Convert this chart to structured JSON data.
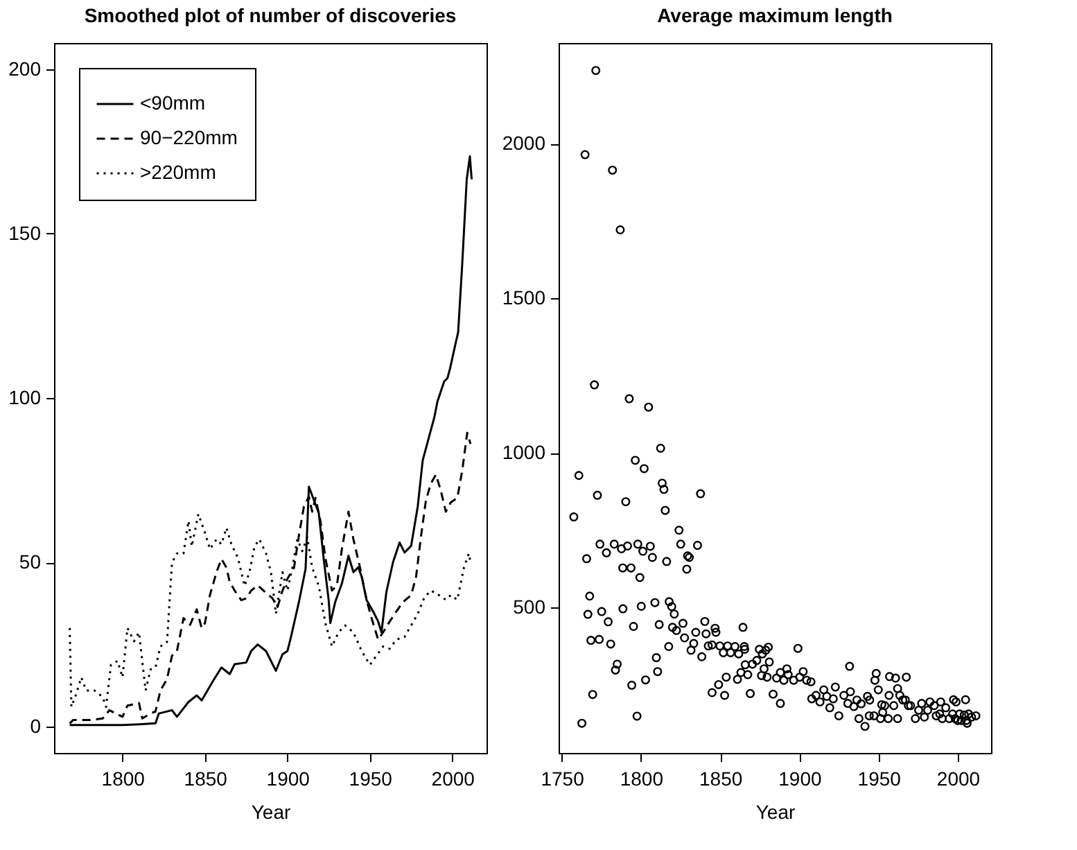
{
  "chart_data": [
    {
      "type": "line",
      "title": "Smoothed plot of number of discoveries",
      "xlabel": "Year",
      "xlim": [
        1758.5,
        2020.7
      ],
      "ylim": [
        -8,
        208
      ],
      "xticks": [
        1800,
        1850,
        1900,
        1950,
        2000
      ],
      "yticks": [
        0,
        50,
        100,
        150,
        200
      ],
      "grid": false,
      "legend": "top left",
      "series": [
        {
          "name": "<90mm",
          "color": "#000000",
          "line_style": "solid",
          "x": [
            1768,
            1780,
            1800,
            1810,
            1820,
            1822,
            1830,
            1833,
            1840,
            1845,
            1848,
            1855,
            1860,
            1865,
            1868,
            1875,
            1878,
            1882,
            1887,
            1890,
            1893,
            1897,
            1900,
            1902,
            1907,
            1911,
            1913,
            1916,
            1919,
            1922,
            1925,
            1926,
            1929,
            1933,
            1937,
            1940,
            1943,
            1945,
            1948,
            1952,
            1955,
            1957,
            1960,
            1964,
            1968,
            1971,
            1975,
            1979,
            1982,
            1985,
            1989,
            1991,
            1995,
            1997,
            1998.6,
            2001.9,
            2003.5,
            2006,
            2008.7,
            2010.6,
            2011.7
          ],
          "values": [
            0.5,
            0.5,
            0.5,
            0.7,
            1,
            4,
            5,
            3,
            7.5,
            9.5,
            8,
            14,
            18,
            16,
            19,
            19.5,
            23,
            25,
            23,
            20,
            17,
            22,
            23,
            27,
            38,
            48,
            73,
            69,
            65,
            51,
            38.5,
            31.5,
            38,
            43.5,
            52,
            47,
            48.5,
            45.6,
            38.5,
            35,
            32,
            28.7,
            41,
            50,
            56,
            53,
            55,
            67,
            81,
            86.6,
            94,
            99,
            105,
            106,
            109,
            116.5,
            120,
            141,
            166.5,
            173.5,
            166.5
          ]
        },
        {
          "name": "90−220mm",
          "color": "#000000",
          "line_style": "dashed",
          "x": [
            1768,
            1770,
            1780,
            1788,
            1792,
            1800,
            1803,
            1810,
            1812,
            1817,
            1820,
            1823,
            1827,
            1830,
            1833,
            1837,
            1841,
            1845,
            1848,
            1850,
            1853,
            1857,
            1860,
            1863,
            1865,
            1868,
            1872,
            1875,
            1878,
            1882,
            1887,
            1891,
            1894,
            1897,
            1900,
            1904,
            1907,
            1910,
            1913,
            1915,
            1917,
            1920,
            1923,
            1927,
            1930,
            1933,
            1937,
            1940,
            1944,
            1948,
            1951,
            1955,
            1958,
            1962,
            1966,
            1970,
            1975,
            1978,
            1981,
            1984,
            1987,
            1990,
            1993,
            1996,
            1999,
            2003,
            2006,
            2009,
            2011
          ],
          "values": [
            1,
            2,
            2,
            2.5,
            5,
            3,
            6.4,
            7.2,
            2.5,
            4,
            4.6,
            11,
            14.5,
            21.6,
            23,
            33,
            31,
            35.7,
            30,
            31.5,
            40,
            47,
            51,
            48.4,
            44,
            41.4,
            38.5,
            39,
            41.4,
            43,
            40.7,
            39,
            36.4,
            41.4,
            45,
            48.4,
            58.3,
            67,
            70,
            65.4,
            69.6,
            62.6,
            51.3,
            41.4,
            43,
            54,
            65.4,
            57,
            48.4,
            38.5,
            33,
            26.5,
            28.7,
            32,
            35,
            37.9,
            40,
            45.6,
            58,
            69,
            74,
            76.7,
            71.8,
            65.4,
            68.2,
            69.6,
            78,
            89.4,
            86
          ]
        },
        {
          "name": ">220mm",
          "color": "#000000",
          "line_style": "dotted",
          "x": [
            1768,
            1769,
            1772,
            1775,
            1778,
            1783,
            1788,
            1790,
            1793,
            1797,
            1800,
            1803,
            1807,
            1810,
            1814,
            1817,
            1820,
            1823,
            1827,
            1830,
            1833,
            1837,
            1840,
            1842,
            1846,
            1850,
            1853,
            1857,
            1860,
            1863,
            1866,
            1870,
            1874,
            1877,
            1880,
            1883,
            1887,
            1890,
            1893,
            1897,
            1900,
            1903,
            1906,
            1909,
            1912,
            1915,
            1919,
            1923,
            1927,
            1931,
            1935,
            1940,
            1945,
            1950,
            1954,
            1958,
            1962,
            1966,
            1971,
            1975,
            1979,
            1983,
            1987,
            1991,
            1996,
            1999,
            2003,
            2007,
            2010,
            2011
          ],
          "values": [
            30,
            6,
            10,
            15,
            11,
            11,
            9,
            6,
            18.8,
            20,
            15,
            30,
            26,
            28.7,
            11,
            17.4,
            18,
            24.4,
            25.8,
            49.9,
            52.7,
            52.7,
            62.6,
            54.8,
            64.7,
            59,
            54,
            57,
            55.5,
            60.5,
            55.5,
            51.3,
            42.8,
            47,
            54.8,
            57,
            52.7,
            47,
            34.3,
            47,
            41.4,
            48.4,
            57,
            53.4,
            57.6,
            48.4,
            42.8,
            31.5,
            24.4,
            28.7,
            30.8,
            28.7,
            23,
            18.8,
            21.6,
            24.4,
            23.7,
            26.5,
            27.3,
            30.8,
            34.3,
            39.3,
            41.4,
            40.3,
            38.6,
            40,
            38.6,
            48.4,
            52.7,
            49.9
          ]
        }
      ]
    },
    {
      "type": "scatter",
      "title": "Average maximum length",
      "xlabel": "Year",
      "xlim": [
        1748,
        2021
      ],
      "ylim": [
        30,
        2325
      ],
      "xticks": [
        1750,
        1800,
        1850,
        1900,
        1950,
        2000
      ],
      "yticks": [
        500,
        1000,
        1500,
        2000
      ],
      "grid": false,
      "marker": "circle",
      "color": "#000000",
      "x": [
        1771.5,
        1764.7,
        1782,
        1786.9,
        1770.6,
        1792.6,
        1804.8,
        1812.4,
        1760.8,
        1757.6,
        1772.5,
        1790.4,
        1796.4,
        1802,
        1813.4,
        1814.5,
        1815.3,
        1837.6,
        1765.7,
        1774.1,
        1778.2,
        1783.1,
        1787.7,
        1791.5,
        1788.5,
        1793.7,
        1798,
        1801.2,
        1799.3,
        1805.9,
        1807.2,
        1816.2,
        1824,
        1825.1,
        1829.4,
        1830.5,
        1828.9,
        1835.7,
        1767.6,
        1766.5,
        1775.2,
        1779.3,
        1788.6,
        1800.2,
        1808.8,
        1768.4,
        1773.6,
        1780.9,
        1795.3,
        1811.5,
        1817.8,
        1819.4,
        1821,
        1819.9,
        1822.4,
        1826.5,
        1827.5,
        1817.5,
        1809.7,
        1810.5,
        1785,
        1783.9,
        1794.2,
        1802.9,
        1769.5,
        1762.7,
        1797.5,
        1831.6,
        1833.3,
        1834.6,
        1838.4,
        1840.3,
        1841.1,
        1842.5,
        1844.9,
        1846.8,
        1847.3,
        1849.8,
        1852,
        1854.7,
        1856.6,
        1859.3,
        1861.7,
        1865.2,
        1864.4,
        1865.5,
        1844.9,
        1849,
        1852.8,
        1853.8,
        1860.9,
        1863.1,
        1865.8,
        1869,
        1867.4,
        1870.4,
        1873.1,
        1874.7,
        1876.6,
        1878.8,
        1880.4,
        1877.7,
        1881,
        1876.1,
        1879.6,
        1885.6,
        1888,
        1890.2,
        1892.1,
        1883.4,
        1888,
        1892.9,
        1896.4,
        1899.1,
        1900.2,
        1902.4,
        1904.6,
        1907.3,
        1907.8,
        1910.5,
        1913,
        1915.4,
        1917.3,
        1919.2,
        1921.4,
        1922.7,
        1924.9,
        1928.1,
        1930.6,
        1932.2,
        1934.4,
        1936.3,
        1939,
        1931.7,
        1943,
        1937.6,
        1941.4,
        1947.7,
        1948.5,
        1949.8,
        1944.1,
        1953.9,
        1956.6,
        1959.6,
        1962,
        1963.4,
        1966.9,
        1968.8,
        1973.2,
        1970.2,
        1975.3,
        1977.2,
        1962,
        1956.9,
        1960.7,
        1965.3,
        1956.1,
        1951.2,
        1944.4,
        1952,
        1952.6,
        1947.1,
        1967.5,
        1981,
        1978.9,
        1982.4,
        1985.1,
        1986.4,
        1988.6,
        1990.2,
        1992.4,
        1994.6,
        1996.7,
        1998.4,
        2000,
        2001.1,
        1989.2,
        1997.3,
        1998.9,
        2002.2,
        2004.1,
        2005.4,
        2006.8,
        2004.9,
        2008.7,
        2005.9,
        2011.4
      ],
      "values": [
        2236,
        1964,
        1914,
        1721,
        1220,
        1175,
        1148,
        1015,
        927,
        793,
        863,
        842,
        976,
        949,
        902,
        882,
        814,
        868,
        658,
        705,
        677,
        705,
        690,
        699,
        628,
        628,
        705,
        682,
        597,
        698,
        662,
        649,
        750,
        705,
        667,
        662,
        624,
        701,
        537,
        478,
        487,
        454,
        496,
        504,
        516,
        394,
        397,
        382,
        439,
        445,
        519,
        503,
        479,
        436,
        426,
        449,
        402,
        374,
        338,
        293,
        317,
        298,
        249,
        266,
        219,
        126,
        149,
        362,
        384,
        420,
        341,
        455,
        415,
        376,
        379,
        433,
        420,
        376,
        354,
        376,
        354,
        374,
        350,
        374,
        436,
        365,
        225,
        251,
        216,
        275,
        268,
        290,
        315,
        222,
        283,
        317,
        329,
        365,
        350,
        362,
        372,
        302,
        324,
        280,
        275,
        272,
        290,
        265,
        302,
        220,
        190,
        283,
        265,
        368,
        275,
        293,
        265,
        260,
        205,
        216,
        195,
        234,
        213,
        176,
        205,
        243,
        150,
        216,
        190,
        228,
        180,
        201,
        189,
        310,
        213,
        141,
        116,
        265,
        287,
        234,
        150,
        183,
        216,
        183,
        141,
        216,
        201,
        183,
        141,
        183,
        168,
        190,
        238,
        277,
        272,
        201,
        141,
        141,
        201,
        186,
        161,
        150,
        275,
        168,
        146,
        195,
        183,
        150,
        156,
        141,
        176,
        141,
        156,
        141,
        135,
        156,
        195,
        202,
        195,
        135,
        153,
        135,
        156,
        202,
        146,
        126,
        150
      ]
    }
  ]
}
